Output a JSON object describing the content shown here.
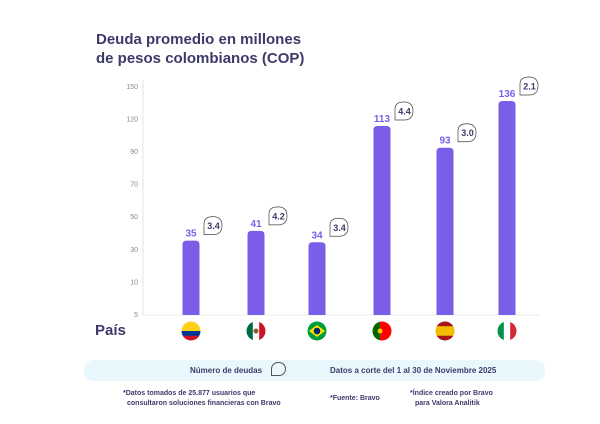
{
  "chart_data": {
    "type": "bar",
    "title": "Deuda promedio en millones de pesos colombianos (COP)",
    "xlabel": "País",
    "ylabel": "",
    "yticks": [
      5,
      10,
      30,
      50,
      70,
      90,
      120,
      150
    ],
    "ylim": [
      5,
      150
    ],
    "grid": false,
    "categories": [
      "Colombia",
      "México",
      "Brasil",
      "Portugal",
      "España",
      "Italia"
    ],
    "values": [
      35,
      41,
      34,
      113,
      93,
      136
    ],
    "secondary_labels": {
      "name": "Número de deudas",
      "values": [
        "3.4",
        "4.2",
        "3.4",
        "4.4",
        "3.0",
        "2.1"
      ]
    },
    "bar_color": "#7b5ee8"
  },
  "legend": {
    "label": "Número de deudas",
    "cutoff": "Datos a corte del 1 al 30 de Noviembre 2025"
  },
  "notes": {
    "data_line1": "*Datos tomados de 25.877 usuarios que",
    "data_line2": "consultaron soluciones financieras con Bravo",
    "source": "*Fuente: Bravo",
    "index_line1": "*Índice creado por Bravo",
    "index_line2": "para Valora Analitik"
  }
}
